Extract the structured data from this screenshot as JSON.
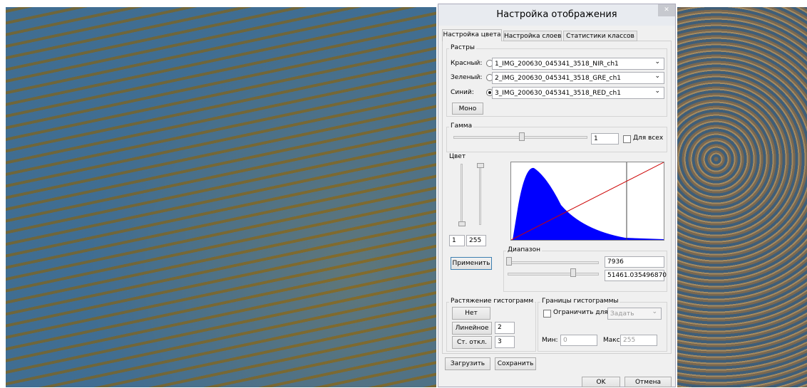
{
  "dialog": {
    "title": "Настройка отображения",
    "tabs": [
      "Настройка цвета",
      "Настройка слоев",
      "Статистики классов"
    ],
    "rasters": {
      "title": "Растры",
      "rows": [
        {
          "label": "Красный:",
          "value": "1_IMG_200630_045341_3518_NIR_ch1"
        },
        {
          "label": "Зеленый:",
          "value": "2_IMG_200630_045341_3518_GRE_ch1"
        },
        {
          "label": "Синий:",
          "value": "3_IMG_200630_045341_3518_RED_ch1"
        }
      ],
      "mono": "Моно"
    },
    "gamma": {
      "title": "Гамма",
      "value": "1",
      "all": "Для всех"
    },
    "color": {
      "title": "Цвет",
      "min": "1",
      "max": "255",
      "apply": "Применить",
      "range": {
        "title": "Диапазон",
        "low": "7936",
        "high": "51461.035496870"
      }
    },
    "stretch": {
      "title": "Растяжение гистограмм",
      "none": "Нет",
      "linear": "Линейное",
      "linear_value": "2",
      "std": "Ст. откл.",
      "std_value": "3"
    },
    "bounds": {
      "title": "Границы гистограммы",
      "limit": "Ограничить для:",
      "set": "Задать",
      "min_label": "Мин:",
      "min": "0",
      "max_label": "Макс:",
      "max": "255"
    },
    "buttons": {
      "load": "Загрузить",
      "save": "Сохранить",
      "ok": "OK",
      "cancel": "Отмена"
    }
  }
}
